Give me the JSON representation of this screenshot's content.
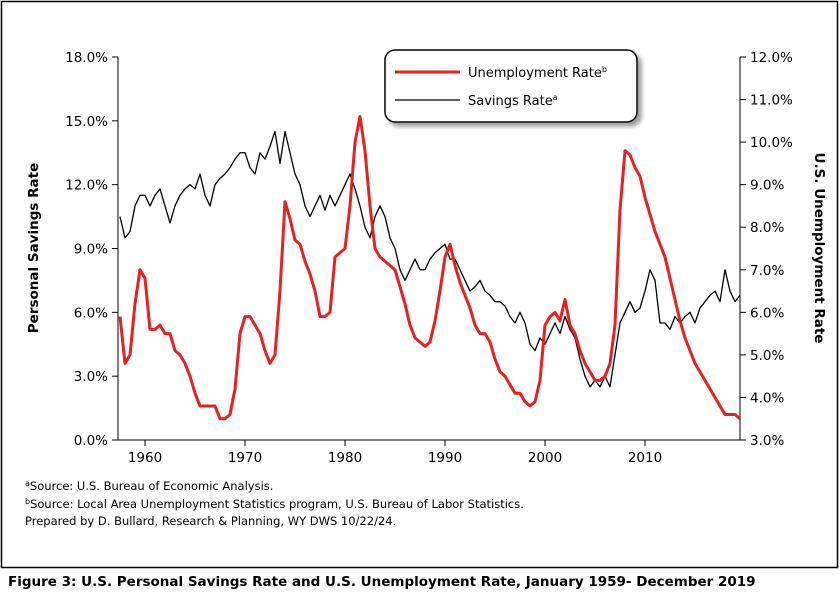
{
  "chart_data": {
    "type": "line",
    "caption": "Figure 3:  U.S. Personal Savings Rate and U.S. Unemployment Rate, January 1959- December 2019",
    "ylabel": "Personal Savings Rate",
    "y2label": "U.S. Unemployment Rate",
    "footnotes": [
      {
        "mark": "a",
        "text": "Source: U.S. Bureau of Economic Analysis."
      },
      {
        "mark": "b",
        "text": "Source: Local Area Unemployment Statistics program, U.S. Bureau of Labor Statistics."
      }
    ],
    "credit": "Prepared by D. Bullard, Research & Planning, WY DWS 10/22/24.",
    "xlim": [
      1957.3,
      2019.5
    ],
    "xticks": [
      1960,
      1970,
      1980,
      1990,
      2000,
      2010
    ],
    "ylim": [
      0,
      18
    ],
    "yticks": [
      {
        "value": 0,
        "label": "0.0%"
      },
      {
        "value": 3,
        "label": "3.0%"
      },
      {
        "value": 6,
        "label": "6.0%"
      },
      {
        "value": 9,
        "label": "9.0%"
      },
      {
        "value": 12,
        "label": "12.0%"
      },
      {
        "value": 15,
        "label": "15.0%"
      },
      {
        "value": 18,
        "label": "18.0%"
      }
    ],
    "y2lim": [
      3,
      12
    ],
    "y2ticks": [
      {
        "value": 3,
        "label": "3.0%"
      },
      {
        "value": 4,
        "label": "4.0%"
      },
      {
        "value": 5,
        "label": "5.0%"
      },
      {
        "value": 6,
        "label": "6.0%"
      },
      {
        "value": 7,
        "label": "7.0%"
      },
      {
        "value": 8,
        "label": "8.0%"
      },
      {
        "value": 9,
        "label": "9.0%"
      },
      {
        "value": 10,
        "label": "10.0%"
      },
      {
        "value": 11,
        "label": "11.0%"
      },
      {
        "value": 12,
        "label": "12.0%"
      }
    ],
    "legend": "top-right",
    "x": [
      1957.5,
      1958,
      1958.5,
      1959,
      1959.5,
      1960,
      1960.5,
      1961,
      1961.5,
      1962,
      1962.5,
      1963,
      1963.5,
      1964,
      1964.5,
      1965,
      1965.5,
      1966,
      1966.5,
      1967,
      1967.5,
      1968,
      1968.5,
      1969,
      1969.5,
      1970,
      1970.5,
      1971,
      1971.5,
      1972,
      1972.5,
      1973,
      1973.5,
      1974,
      1974.5,
      1975,
      1975.5,
      1976,
      1976.5,
      1977,
      1977.5,
      1978,
      1978.5,
      1979,
      1979.5,
      1980,
      1980.5,
      1981,
      1981.5,
      1982,
      1982.5,
      1983,
      1983.5,
      1984,
      1984.5,
      1985,
      1985.5,
      1986,
      1986.5,
      1987,
      1987.5,
      1988,
      1988.5,
      1989,
      1989.5,
      1990,
      1990.5,
      1991,
      1991.5,
      1992,
      1992.5,
      1993,
      1993.5,
      1994,
      1994.5,
      1995,
      1995.5,
      1996,
      1996.5,
      1997,
      1997.5,
      1998,
      1998.5,
      1999,
      1999.5,
      2000,
      2000.5,
      2001,
      2001.5,
      2002,
      2002.5,
      2003,
      2003.5,
      2004,
      2004.5,
      2005,
      2005.5,
      2006,
      2006.5,
      2007,
      2007.5,
      2008,
      2008.5,
      2009,
      2009.5,
      2010,
      2010.5,
      2011,
      2011.5,
      2012,
      2012.5,
      2013,
      2013.5,
      2014,
      2014.5,
      2015,
      2015.5,
      2016,
      2016.5,
      2017,
      2017.5,
      2018,
      2018.5,
      2019,
      2019.5
    ],
    "series": [
      {
        "name": "Unemployment Rate",
        "note": "b",
        "color": "#e8201f",
        "axis": "y2",
        "values": [
          5.9,
          4.8,
          5.0,
          6.2,
          7.0,
          6.8,
          5.6,
          5.6,
          5.7,
          5.5,
          5.5,
          5.1,
          5.0,
          4.8,
          4.5,
          4.1,
          3.8,
          3.8,
          3.8,
          3.8,
          3.5,
          3.5,
          3.6,
          4.2,
          5.5,
          5.9,
          5.9,
          5.7,
          5.5,
          5.1,
          4.8,
          5.0,
          6.5,
          8.6,
          8.2,
          7.7,
          7.6,
          7.2,
          6.9,
          6.5,
          5.9,
          5.9,
          6.0,
          7.3,
          7.4,
          7.5,
          8.5,
          10.0,
          10.6,
          9.8,
          8.5,
          7.5,
          7.3,
          7.2,
          7.1,
          7.0,
          6.6,
          6.2,
          5.7,
          5.4,
          5.3,
          5.2,
          5.3,
          5.8,
          6.5,
          7.3,
          7.6,
          7.1,
          6.7,
          6.4,
          6.1,
          5.7,
          5.5,
          5.5,
          5.3,
          4.9,
          4.6,
          4.5,
          4.3,
          4.1,
          4.1,
          3.9,
          3.8,
          3.9,
          4.4,
          5.7,
          5.9,
          6.0,
          5.8,
          6.3,
          5.7,
          5.5,
          5.1,
          4.8,
          4.6,
          4.4,
          4.4,
          4.5,
          4.8,
          5.7,
          8.4,
          9.8,
          9.7,
          9.4,
          9.2,
          8.7,
          8.3,
          7.9,
          7.6,
          7.3,
          6.8,
          6.3,
          5.8,
          5.4,
          5.1,
          4.8,
          4.6,
          4.4,
          4.2,
          4.0,
          3.8,
          3.6,
          3.6,
          3.6,
          3.5
        ]
      },
      {
        "name": "Savings Rate",
        "note": "a",
        "color": "#000000",
        "values": [
          10.5,
          9.5,
          9.8,
          11.0,
          11.5,
          11.5,
          11.0,
          11.5,
          11.8,
          11.0,
          10.2,
          11.0,
          11.5,
          11.8,
          12.0,
          11.8,
          12.5,
          11.5,
          11.0,
          12.0,
          12.3,
          12.5,
          12.8,
          13.2,
          13.5,
          13.5,
          12.8,
          12.5,
          13.5,
          13.2,
          13.8,
          14.5,
          13.0,
          14.5,
          13.5,
          12.5,
          12.0,
          11.0,
          10.5,
          11.0,
          11.5,
          10.8,
          11.5,
          11.0,
          11.5,
          12.0,
          12.5,
          11.8,
          11.0,
          10.0,
          9.5,
          10.5,
          11.0,
          10.5,
          9.5,
          9.0,
          8.0,
          7.5,
          8.0,
          8.5,
          8.0,
          8.0,
          8.5,
          8.8,
          9.0,
          9.2,
          8.5,
          8.5,
          8.0,
          7.5,
          7.0,
          7.2,
          7.5,
          7.0,
          6.8,
          6.5,
          6.5,
          6.3,
          5.8,
          5.5,
          6.0,
          5.5,
          4.5,
          4.2,
          4.8,
          4.5,
          5.0,
          5.5,
          5.0,
          5.8,
          5.2,
          4.8,
          3.8,
          3.0,
          2.5,
          2.8,
          2.5,
          3.0,
          2.5,
          4.0,
          5.5,
          6.0,
          6.5,
          6.0,
          6.2,
          7.0,
          8.0,
          7.5,
          5.5,
          5.5,
          5.2,
          5.8,
          5.5,
          5.8,
          6.0,
          5.5,
          6.2,
          6.5,
          6.8,
          7.0,
          6.5,
          8.0,
          7.0,
          6.5,
          6.8
        ]
      }
    ]
  }
}
